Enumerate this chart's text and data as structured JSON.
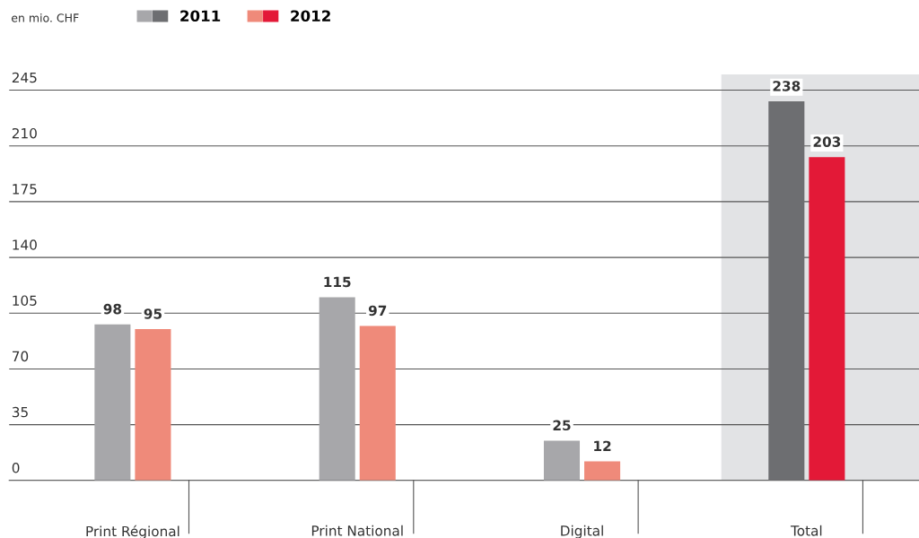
{
  "chart_data": {
    "type": "bar",
    "ylabel": "en mio. CHF",
    "categories": [
      "Print Régional",
      "Print National",
      "Digital",
      "Total"
    ],
    "series": [
      {
        "name": "2011",
        "colors": [
          "#a7a7aa",
          "#a7a7aa",
          "#a7a7aa",
          "#6d6e71"
        ],
        "values": [
          98,
          115,
          25,
          238
        ]
      },
      {
        "name": "2012",
        "colors": [
          "#ef8a7a",
          "#ef8a7a",
          "#ef8a7a",
          "#e31937"
        ],
        "values": [
          95,
          97,
          12,
          203
        ]
      }
    ],
    "ylim": [
      0,
      255
    ],
    "yticks": [
      0,
      35,
      70,
      105,
      140,
      175,
      210,
      245
    ],
    "bands": [
      {
        "axis": "x",
        "from": "Total",
        "to": "Total",
        "color": "#e2e3e5"
      }
    ],
    "grid": "y",
    "legend": "top left",
    "data_labels": true
  }
}
